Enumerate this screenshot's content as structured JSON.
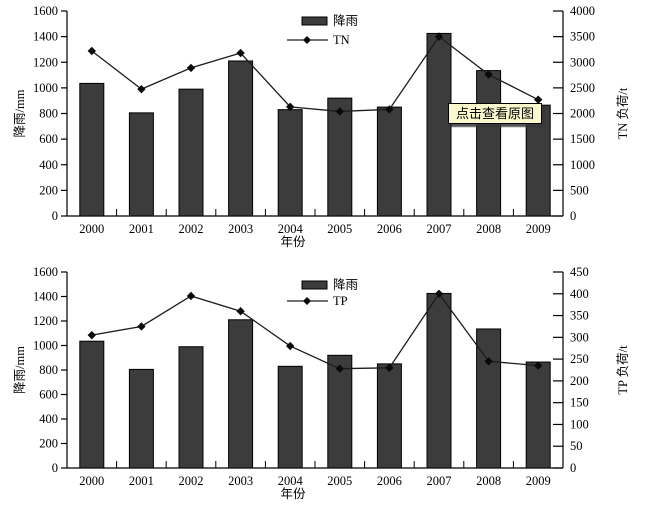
{
  "overlay": {
    "label": "点击查看原图"
  },
  "colors": {
    "bar": "#3c3c3c",
    "bar_border": "#000000",
    "line": "#1c1c1c",
    "marker": "#0a0a0a",
    "axis": "#000000",
    "tooltip_bg": "#fbf8cd"
  },
  "chart_data": [
    {
      "type": "bar+line",
      "categories": [
        "2000",
        "2001",
        "2002",
        "2003",
        "2004",
        "2005",
        "2006",
        "2007",
        "2008",
        "2009"
      ],
      "series": [
        {
          "name": "降雨",
          "type": "bar",
          "axis": "left",
          "values": [
            1035,
            805,
            990,
            1210,
            830,
            920,
            850,
            1425,
            1135,
            865
          ]
        },
        {
          "name": "TN",
          "type": "line",
          "axis": "right",
          "values": [
            3220,
            2475,
            2890,
            3180,
            2130,
            2040,
            2080,
            3500,
            2760,
            2270
          ]
        }
      ],
      "left_axis": {
        "title": "降雨/mm",
        "min": 0,
        "max": 1600,
        "step": 200
      },
      "right_axis": {
        "title": "TN 负荷/t",
        "min": 0,
        "max": 4000,
        "step": 500
      },
      "xlabel": "年份",
      "legend": [
        "降雨",
        "TN"
      ],
      "legend_position": "top-inside-right-of-center",
      "grid": false
    },
    {
      "type": "bar+line",
      "categories": [
        "2000",
        "2001",
        "2002",
        "2003",
        "2004",
        "2005",
        "2006",
        "2007",
        "2008",
        "2009"
      ],
      "series": [
        {
          "name": "降雨",
          "type": "bar",
          "axis": "left",
          "values": [
            1035,
            805,
            990,
            1210,
            830,
            920,
            850,
            1425,
            1135,
            865
          ]
        },
        {
          "name": "TP",
          "type": "line",
          "axis": "right",
          "values": [
            305,
            325,
            395,
            360,
            280,
            228,
            230,
            400,
            245,
            235
          ]
        }
      ],
      "left_axis": {
        "title": "降雨/mm",
        "min": 0,
        "max": 1600,
        "step": 200
      },
      "right_axis": {
        "title": "TP 负荷/t",
        "min": 0,
        "max": 450,
        "step": 50
      },
      "xlabel": "年份",
      "legend": [
        "降雨",
        "TP"
      ],
      "legend_position": "top-inside-right-of-center",
      "grid": false
    }
  ]
}
